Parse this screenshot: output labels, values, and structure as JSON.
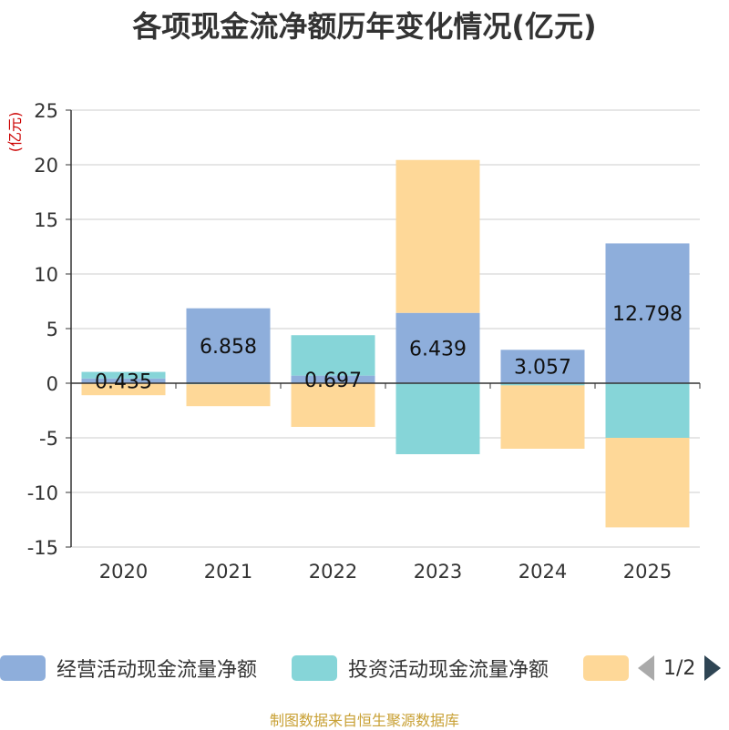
{
  "chart_data": {
    "type": "bar",
    "stacked": true,
    "title": "各项现金流净额历年变化情况(亿元)",
    "ylabel": "(亿元)",
    "ylim": [
      -15,
      25
    ],
    "yticks": [
      25,
      20,
      15,
      10,
      5,
      0,
      -5,
      -10,
      -15
    ],
    "categories": [
      "2020",
      "2021",
      "2022",
      "2023",
      "2024",
      "2025"
    ],
    "series": [
      {
        "name": "经营活动现金流量净额",
        "color": "#8eaedb",
        "values": [
          0.435,
          6.858,
          0.697,
          6.439,
          3.057,
          12.798
        ],
        "label_text": [
          "0.435",
          "6.858",
          "0.697",
          "6.439",
          "3.057",
          "12.798"
        ]
      },
      {
        "name": "投资活动现金流量净额",
        "color": "#86d5d8",
        "values": [
          0.6,
          -0.1,
          3.7,
          -6.5,
          -0.2,
          -5.0
        ]
      },
      {
        "name": "",
        "color": "#fed898",
        "values": [
          -1.1,
          -2.0,
          -4.0,
          14.0,
          -5.8,
          -8.2
        ]
      }
    ],
    "legend_position": "bottom"
  },
  "legend": {
    "page": "1/2"
  },
  "source": "制图数据来自恒生聚源数据库"
}
